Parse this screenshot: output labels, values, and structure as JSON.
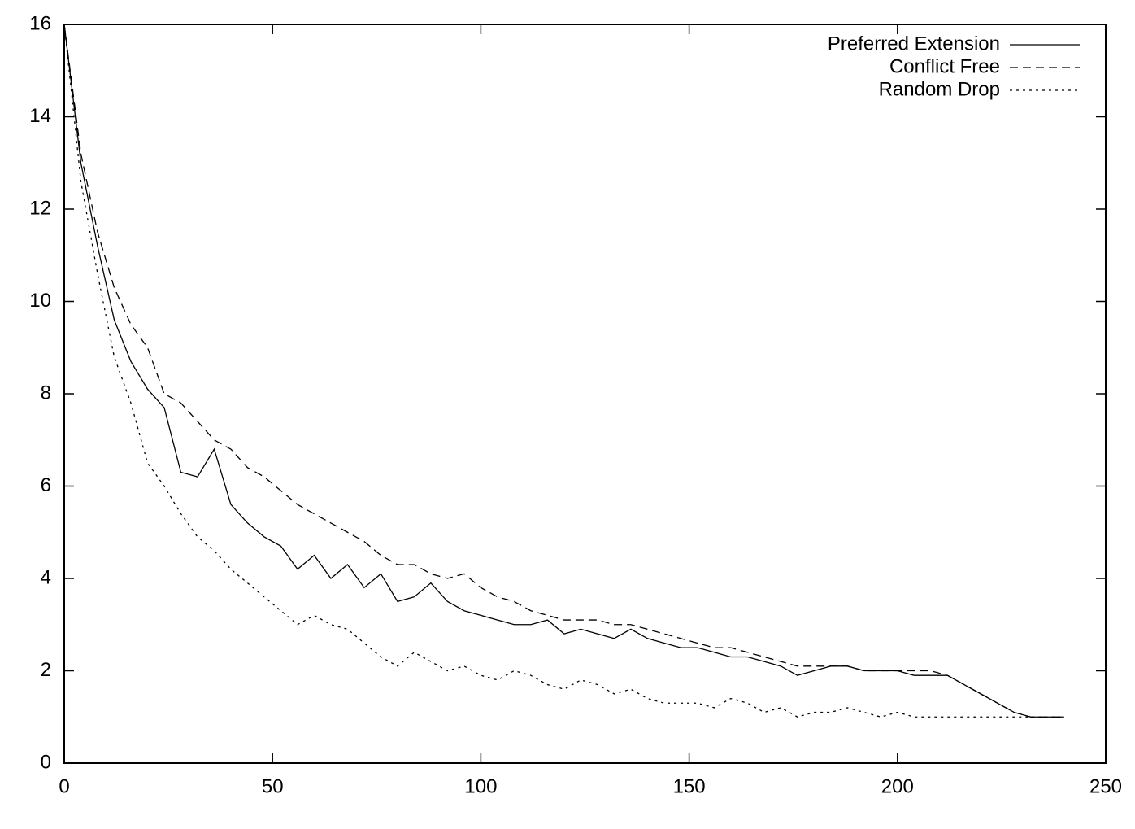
{
  "chart_data": {
    "type": "line",
    "x": [
      0,
      4,
      8,
      12,
      16,
      20,
      24,
      28,
      32,
      36,
      40,
      44,
      48,
      52,
      56,
      60,
      64,
      68,
      72,
      76,
      80,
      84,
      88,
      92,
      96,
      100,
      104,
      108,
      112,
      116,
      120,
      124,
      128,
      132,
      136,
      140,
      144,
      148,
      152,
      156,
      160,
      164,
      168,
      172,
      176,
      180,
      184,
      188,
      192,
      196,
      200,
      204,
      208,
      212,
      216,
      220,
      224,
      228,
      232,
      236,
      240
    ],
    "series": [
      {
        "name": "Preferred Extension",
        "color": "#000000",
        "dash": "solid",
        "values": [
          16,
          13,
          11.2,
          9.6,
          8.7,
          8.1,
          7.7,
          6.3,
          6.2,
          6.8,
          5.6,
          5.2,
          4.9,
          4.7,
          4.2,
          4.5,
          4.0,
          4.3,
          3.8,
          4.1,
          3.5,
          3.6,
          3.9,
          3.5,
          3.3,
          3.2,
          3.1,
          3.0,
          3.0,
          3.1,
          2.8,
          2.9,
          2.8,
          2.7,
          2.9,
          2.7,
          2.6,
          2.5,
          2.5,
          2.4,
          2.3,
          2.3,
          2.2,
          2.1,
          1.9,
          2.0,
          2.1,
          2.1,
          2.0,
          2.0,
          2.0,
          1.9,
          1.9,
          1.9,
          1.7,
          1.5,
          1.3,
          1.1,
          1.0,
          1.0,
          1.0
        ]
      },
      {
        "name": "Conflict Free",
        "color": "#000000",
        "dash": "dashed",
        "values": [
          16,
          13.2,
          11.5,
          10.3,
          9.5,
          9.0,
          8.0,
          7.8,
          7.4,
          7.0,
          6.8,
          6.4,
          6.2,
          5.9,
          5.6,
          5.4,
          5.2,
          5.0,
          4.8,
          4.5,
          4.3,
          4.3,
          4.1,
          4.0,
          4.1,
          3.8,
          3.6,
          3.5,
          3.3,
          3.2,
          3.1,
          3.1,
          3.1,
          3.0,
          3.0,
          2.9,
          2.8,
          2.7,
          2.6,
          2.5,
          2.5,
          2.4,
          2.3,
          2.2,
          2.1,
          2.1,
          2.1,
          2.1,
          2.0,
          2.0,
          2.0,
          2.0,
          2.0,
          1.9,
          1.7,
          1.5,
          1.3,
          1.1,
          1.0,
          1.0,
          1.0
        ]
      },
      {
        "name": "Random Drop",
        "color": "#000000",
        "dash": "dotted",
        "values": [
          16,
          12.6,
          10.6,
          8.8,
          7.8,
          6.5,
          6.0,
          5.4,
          4.9,
          4.6,
          4.2,
          3.9,
          3.6,
          3.3,
          3.0,
          3.2,
          3.0,
          2.9,
          2.6,
          2.3,
          2.1,
          2.4,
          2.2,
          2.0,
          2.1,
          1.9,
          1.8,
          2.0,
          1.9,
          1.7,
          1.6,
          1.8,
          1.7,
          1.5,
          1.6,
          1.4,
          1.3,
          1.3,
          1.3,
          1.2,
          1.4,
          1.3,
          1.1,
          1.2,
          1.0,
          1.1,
          1.1,
          1.2,
          1.1,
          1.0,
          1.1,
          1.0,
          1.0,
          1.0,
          1.0,
          1.0,
          1.0,
          1.0,
          1.0,
          1.0,
          1.0
        ]
      }
    ],
    "xlim": [
      0,
      250
    ],
    "xticks": [
      0,
      50,
      100,
      150,
      200,
      250
    ],
    "ylim": [
      0,
      16
    ],
    "yticks": [
      0,
      2,
      4,
      6,
      8,
      10,
      12,
      14,
      16
    ],
    "legend": "top-right"
  }
}
